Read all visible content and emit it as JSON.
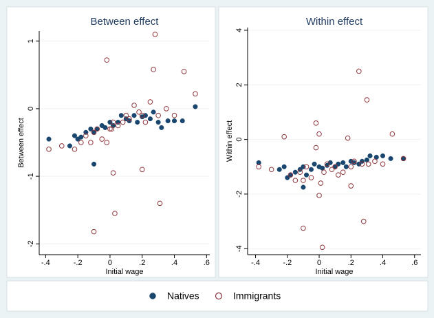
{
  "chart_data": [
    {
      "type": "scatter",
      "title": "Between effect",
      "xlabel": "Initial wage",
      "ylabel": "Between effect",
      "xlim": [
        -0.44,
        0.62
      ],
      "ylim": [
        -2.16,
        1.15
      ],
      "xticks": [
        {
          "value": -0.4,
          "label": "-.4"
        },
        {
          "value": -0.2,
          "label": "-.2"
        },
        0,
        {
          "value": 0.2,
          "label": ".2"
        },
        {
          "value": 0.4,
          "label": ".4"
        },
        {
          "value": 0.6,
          "label": ".6"
        }
      ],
      "yticks": [
        -2,
        -1,
        0,
        1
      ],
      "grid": true,
      "series": [
        {
          "name": "Natives",
          "color": "#1a476f",
          "filled": true,
          "x": [
            -0.38,
            -0.25,
            -0.22,
            -0.2,
            -0.18,
            -0.15,
            -0.12,
            -0.1,
            -0.08,
            -0.05,
            -0.03,
            0,
            0.02,
            0.05,
            0.07,
            0.1,
            0.12,
            0.15,
            0.17,
            0.2,
            0.22,
            0.25,
            0.27,
            0.3,
            0.32,
            0.36,
            0.4,
            0.45,
            0.53,
            -0.1
          ],
          "values": [
            -0.45,
            -0.55,
            -0.4,
            -0.45,
            -0.42,
            -0.35,
            -0.3,
            -0.35,
            -0.3,
            -0.25,
            -0.28,
            -0.2,
            -0.25,
            -0.2,
            -0.1,
            -0.15,
            -0.18,
            -0.1,
            -0.2,
            -0.12,
            -0.1,
            -0.15,
            -0.05,
            -0.2,
            -0.28,
            -0.18,
            -0.18,
            -0.18,
            0.03,
            -0.82
          ]
        },
        {
          "name": "Immigrants",
          "color": "#90353b",
          "filled": false,
          "x": [
            -0.38,
            -0.3,
            -0.22,
            -0.18,
            -0.15,
            -0.12,
            -0.1,
            -0.08,
            -0.05,
            -0.02,
            0,
            0.02,
            0.03,
            0.05,
            0.08,
            0.1,
            0.12,
            0.15,
            0.18,
            0.2,
            0.22,
            0.25,
            0.27,
            0.28,
            0.3,
            0.31,
            0.35,
            0.4,
            0.46,
            0.53,
            -0.1,
            0.02,
            0.2,
            -0.02,
            0.01
          ],
          "values": [
            -0.6,
            -0.55,
            -0.6,
            -0.5,
            -0.4,
            -0.5,
            -0.35,
            -0.3,
            -0.45,
            0.72,
            -0.3,
            -0.95,
            -1.55,
            -0.25,
            -0.2,
            -0.1,
            -0.15,
            0.05,
            -0.05,
            -0.9,
            -0.2,
            0.1,
            0.58,
            1.1,
            -0.1,
            -1.4,
            0,
            -0.1,
            0.55,
            0.22,
            -1.82,
            -0.2,
            -0.1,
            -0.5,
            -0.3
          ]
        }
      ]
    },
    {
      "type": "scatter",
      "title": "Within effect",
      "xlabel": "Initial wage",
      "ylabel": "Within effect",
      "xlim": [
        -0.45,
        0.64
      ],
      "ylim": [
        -4.22,
        4.1
      ],
      "xticks": [
        {
          "value": -0.4,
          "label": "-.4"
        },
        {
          "value": -0.2,
          "label": "-.2"
        },
        0,
        {
          "value": 0.2,
          "label": ".2"
        },
        {
          "value": 0.4,
          "label": ".4"
        },
        {
          "value": 0.6,
          "label": ".6"
        }
      ],
      "yticks": [
        -4,
        -2,
        0,
        2,
        4
      ],
      "grid": true,
      "series": [
        {
          "name": "Natives",
          "color": "#1a476f",
          "filled": true,
          "x": [
            -0.38,
            -0.25,
            -0.22,
            -0.2,
            -0.18,
            -0.15,
            -0.12,
            -0.1,
            -0.08,
            -0.05,
            -0.03,
            0,
            0.02,
            0.05,
            0.07,
            0.1,
            0.12,
            0.15,
            0.17,
            0.2,
            0.22,
            0.25,
            0.27,
            0.3,
            0.32,
            0.36,
            0.4,
            0.45,
            0.53,
            -0.1
          ],
          "values": [
            -0.85,
            -1.1,
            -1.0,
            -1.4,
            -1.3,
            -1.2,
            -1.1,
            -1.0,
            -1.3,
            -1.1,
            -0.9,
            -1.0,
            -1.05,
            -0.95,
            -0.85,
            -1.0,
            -0.9,
            -0.85,
            -1.0,
            -0.8,
            -0.85,
            -0.9,
            -0.8,
            -0.75,
            -0.6,
            -0.65,
            -0.6,
            -0.7,
            -0.7,
            -1.75
          ]
        },
        {
          "name": "Immigrants",
          "color": "#90353b",
          "filled": false,
          "x": [
            -0.38,
            -0.3,
            -0.22,
            -0.18,
            -0.15,
            -0.12,
            -0.1,
            -0.08,
            -0.05,
            -0.02,
            0,
            0.02,
            0.03,
            0.05,
            0.08,
            0.1,
            0.12,
            0.15,
            0.18,
            0.2,
            0.22,
            0.25,
            0.27,
            0.28,
            0.3,
            0.31,
            0.35,
            0.4,
            0.46,
            0.53,
            -0.1,
            0.0,
            0.2,
            -0.02,
            0.01
          ],
          "values": [
            -1.0,
            -1.1,
            0.1,
            -1.3,
            -1.5,
            -1.2,
            -3.25,
            -1.0,
            -1.4,
            0.6,
            0.2,
            -3.95,
            -1.2,
            -0.9,
            -1.1,
            -1.0,
            -1.3,
            -1.2,
            0.05,
            -1.7,
            -0.8,
            2.5,
            -0.9,
            -3.0,
            1.45,
            -0.9,
            -0.8,
            -0.9,
            0.2,
            -0.7,
            -1.5,
            -2.05,
            -1.0,
            -0.3,
            -1.6
          ]
        }
      ]
    }
  ]
}
